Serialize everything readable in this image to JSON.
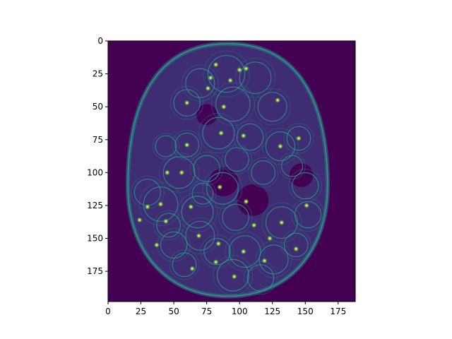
{
  "chart_data": {
    "type": "heatmap",
    "title": "",
    "xlabel": "",
    "ylabel": "",
    "colormap": "viridis",
    "background_color": "#440154",
    "xlim": [
      0,
      188
    ],
    "ylim": [
      198,
      0
    ],
    "x_ticks": [
      0,
      25,
      50,
      75,
      100,
      125,
      150,
      175
    ],
    "y_ticks": [
      0,
      25,
      50,
      75,
      100,
      125,
      150,
      175
    ],
    "egg_outline": {
      "center_x": 91,
      "center_y": 110,
      "top_y": 2,
      "bottom_y": 194,
      "half_width": 76
    },
    "holes": [
      {
        "x": 88,
        "y": 107,
        "r": 11
      },
      {
        "x": 110,
        "y": 121,
        "r": 12
      },
      {
        "x": 147,
        "y": 102,
        "r": 9
      },
      {
        "x": 75,
        "y": 56,
        "r": 8
      }
    ],
    "circles": [
      {
        "x": 90,
        "y": 25,
        "r": 14
      },
      {
        "x": 112,
        "y": 28,
        "r": 12
      },
      {
        "x": 70,
        "y": 32,
        "r": 11
      },
      {
        "x": 95,
        "y": 48,
        "r": 13
      },
      {
        "x": 60,
        "y": 47,
        "r": 10
      },
      {
        "x": 125,
        "y": 50,
        "r": 11
      },
      {
        "x": 84,
        "y": 70,
        "r": 12
      },
      {
        "x": 108,
        "y": 73,
        "r": 10
      },
      {
        "x": 60,
        "y": 79,
        "r": 9
      },
      {
        "x": 131,
        "y": 80,
        "r": 11
      },
      {
        "x": 145,
        "y": 74,
        "r": 9
      },
      {
        "x": 44,
        "y": 80,
        "r": 8
      },
      {
        "x": 54,
        "y": 100,
        "r": 12
      },
      {
        "x": 75,
        "y": 97,
        "r": 10
      },
      {
        "x": 87,
        "y": 112,
        "r": 12
      },
      {
        "x": 118,
        "y": 100,
        "r": 9
      },
      {
        "x": 40,
        "y": 124,
        "r": 13
      },
      {
        "x": 68,
        "y": 130,
        "r": 12
      },
      {
        "x": 97,
        "y": 134,
        "r": 10
      },
      {
        "x": 132,
        "y": 138,
        "r": 12
      },
      {
        "x": 152,
        "y": 132,
        "r": 10
      },
      {
        "x": 70,
        "y": 148,
        "r": 11
      },
      {
        "x": 104,
        "y": 160,
        "r": 12
      },
      {
        "x": 83,
        "y": 160,
        "r": 10
      },
      {
        "x": 126,
        "y": 166,
        "r": 11
      },
      {
        "x": 50,
        "y": 155,
        "r": 10
      },
      {
        "x": 95,
        "y": 178,
        "r": 12
      },
      {
        "x": 143,
        "y": 155,
        "r": 9
      },
      {
        "x": 30,
        "y": 115,
        "r": 10
      },
      {
        "x": 150,
        "y": 110,
        "r": 10
      },
      {
        "x": 58,
        "y": 170,
        "r": 9
      },
      {
        "x": 116,
        "y": 180,
        "r": 10
      },
      {
        "x": 98,
        "y": 90,
        "r": 9
      },
      {
        "x": 72,
        "y": 116,
        "r": 8
      },
      {
        "x": 140,
        "y": 95,
        "r": 8
      },
      {
        "x": 46,
        "y": 140,
        "r": 9
      }
    ],
    "hotspots": [
      {
        "x": 82,
        "y": 18
      },
      {
        "x": 100,
        "y": 22
      },
      {
        "x": 105,
        "y": 21
      },
      {
        "x": 78,
        "y": 28
      },
      {
        "x": 93,
        "y": 30
      },
      {
        "x": 88,
        "y": 50
      },
      {
        "x": 60,
        "y": 47
      },
      {
        "x": 129,
        "y": 45
      },
      {
        "x": 86,
        "y": 70
      },
      {
        "x": 103,
        "y": 72
      },
      {
        "x": 60,
        "y": 79
      },
      {
        "x": 131,
        "y": 80
      },
      {
        "x": 145,
        "y": 74
      },
      {
        "x": 45,
        "y": 100
      },
      {
        "x": 56,
        "y": 100
      },
      {
        "x": 85,
        "y": 111
      },
      {
        "x": 40,
        "y": 124
      },
      {
        "x": 30,
        "y": 126
      },
      {
        "x": 63,
        "y": 126
      },
      {
        "x": 105,
        "y": 122
      },
      {
        "x": 132,
        "y": 138
      },
      {
        "x": 44,
        "y": 137
      },
      {
        "x": 69,
        "y": 148
      },
      {
        "x": 84,
        "y": 154
      },
      {
        "x": 103,
        "y": 160
      },
      {
        "x": 82,
        "y": 168
      },
      {
        "x": 64,
        "y": 173
      },
      {
        "x": 96,
        "y": 179
      },
      {
        "x": 119,
        "y": 167
      },
      {
        "x": 143,
        "y": 158
      },
      {
        "x": 37,
        "y": 155
      },
      {
        "x": 24,
        "y": 136
      },
      {
        "x": 111,
        "y": 140
      },
      {
        "x": 123,
        "y": 150
      },
      {
        "x": 151,
        "y": 125
      },
      {
        "x": 76,
        "y": 36
      }
    ]
  }
}
